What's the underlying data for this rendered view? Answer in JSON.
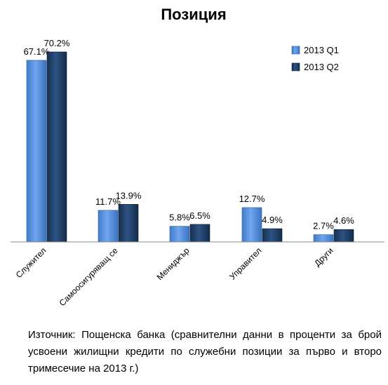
{
  "chart_data": {
    "type": "bar",
    "title": "Позиция",
    "categories": [
      "Служител",
      "Самоосигуряващ се",
      "Мениджър",
      "Управител",
      "Други"
    ],
    "series": [
      {
        "name": "2013 Q1",
        "values": [
          67.1,
          11.7,
          5.8,
          12.7,
          2.7
        ],
        "labels": [
          "67.1%",
          "11.7%",
          "5.8%",
          "12.7%",
          "2.7%"
        ],
        "color": "#4F8FE0"
      },
      {
        "name": "2013 Q2",
        "values": [
          70.2,
          13.9,
          6.5,
          4.9,
          4.6
        ],
        "labels": [
          "70.2%",
          "13.9%",
          "6.5%",
          "4.9%",
          "4.6%"
        ],
        "color": "#1F3C68"
      }
    ],
    "ylim": [
      0,
      70.2
    ],
    "grid": false,
    "legend": "top-right"
  },
  "caption": "Източник: Пощенска банка (сравнителни данни в проценти за брой усвоени жилищни кредити по служебни позиции за първо и второ тримесечие на 2013 г.)"
}
